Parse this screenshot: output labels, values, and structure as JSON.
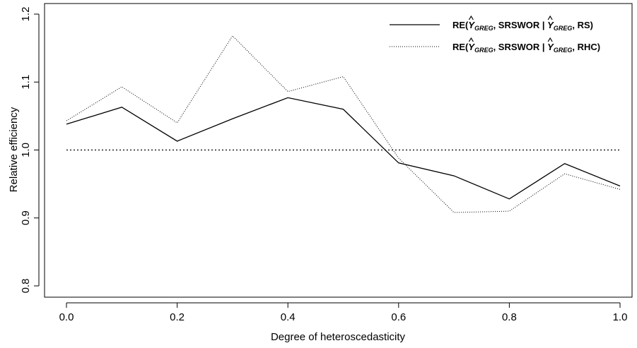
{
  "chart_data": {
    "type": "line",
    "title": "",
    "xlabel": "Degree of heteroscedasticity",
    "ylabel": "Relative efficiency",
    "xlim": [
      0.0,
      1.0
    ],
    "ylim": [
      0.8,
      1.2
    ],
    "x_ticks": [
      "0.0",
      "0.2",
      "0.4",
      "0.6",
      "0.8",
      "1.0"
    ],
    "y_ticks": [
      "0.8",
      "0.9",
      "1.0",
      "1.1",
      "1.2"
    ],
    "grid": false,
    "legend_position": "top-right",
    "x": [
      0.0,
      0.1,
      0.2,
      0.3,
      0.4,
      0.5,
      0.6,
      0.7,
      0.8,
      0.9,
      1.0
    ],
    "series": [
      {
        "legend": {
          "prefix": "RE(",
          "symbol": "Y",
          "sub": "GREG",
          "mid": ", SRSWOR | ",
          "symbol2": "Y",
          "sub2": "GREG",
          "suffix": ", RS)"
        },
        "line_style": "solid",
        "color": "#000000",
        "values": [
          1.038,
          1.063,
          1.013,
          1.046,
          1.077,
          1.06,
          0.981,
          0.962,
          0.928,
          0.98,
          0.947
        ]
      },
      {
        "legend": {
          "prefix": "RE(",
          "symbol": "Y",
          "sub": "GREG",
          "mid": ", SRSWOR | ",
          "symbol2": "Y",
          "sub2": "GREG",
          "suffix": ", RHC)"
        },
        "line_style": "dotted",
        "color": "#000000",
        "values": [
          1.043,
          1.093,
          1.04,
          1.168,
          1.086,
          1.108,
          0.988,
          0.908,
          0.91,
          0.965,
          0.942
        ]
      }
    ],
    "reference_line": {
      "y": 1.0,
      "style": "dotted"
    }
  }
}
